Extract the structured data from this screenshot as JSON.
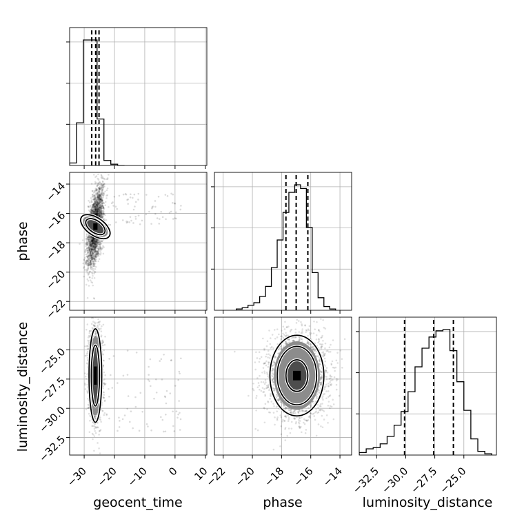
{
  "chart_data": {
    "type": "corner",
    "parameters": [
      "geocent_time",
      "phase",
      "luminosity_distance"
    ],
    "axes": {
      "geocent_time": {
        "label": "geocent_time",
        "range": [
          -34.8,
          10.5
        ],
        "ticks": [
          -30,
          -20,
          -10,
          0,
          10
        ],
        "tick_labels": [
          "−30",
          "−20",
          "−10",
          "0",
          "10"
        ]
      },
      "phase": {
        "label": "phase",
        "range": [
          -22.6,
          -13.2
        ],
        "ticks": [
          -22,
          -20,
          -18,
          -16,
          -14
        ],
        "tick_labels": [
          "−22",
          "−20",
          "−18",
          "−16",
          "−14"
        ]
      },
      "luminosity_distance": {
        "label": "luminosity_distance",
        "range": [
          -34.0,
          -22.2
        ],
        "ticks": [
          -32.5,
          -30.0,
          -27.5,
          -25.0
        ],
        "tick_labels": [
          "−32.5",
          "−30.0",
          "−27.5",
          "−25.0"
        ]
      }
    },
    "marginals": [
      {
        "parameter": "geocent_time",
        "bin_edges": [
          -34.8,
          -32.535,
          -30.27,
          -28.005,
          -25.74,
          -23.475,
          -21.21,
          -18.945,
          -16.68
        ],
        "counts": [
          2,
          34,
          100,
          100,
          37,
          4,
          1,
          0
        ],
        "quantiles": [
          -27.5,
          -26.2,
          -25.1
        ]
      },
      {
        "parameter": "phase",
        "bin_edges": [
          -21.1,
          -20.7,
          -20.3,
          -19.9,
          -19.5,
          -19.1,
          -18.7,
          -18.3,
          -17.9,
          -17.5,
          -17.1,
          -16.7,
          -16.3,
          -15.9,
          -15.5,
          -15.1,
          -14.7,
          -14.3
        ],
        "counts": [
          1,
          2,
          4,
          6,
          11,
          19,
          34,
          56,
          78,
          94,
          100,
          97,
          66,
          30,
          10,
          3,
          1
        ],
        "quantiles": [
          -17.7,
          -17.0,
          -16.2
        ]
      },
      {
        "parameter": "luminosity_distance",
        "bin_edges": [
          -34.0,
          -33.4,
          -32.8,
          -32.2,
          -31.6,
          -31.0,
          -30.4,
          -29.8,
          -29.2,
          -28.6,
          -28.0,
          -27.4,
          -26.8,
          -26.2,
          -25.6,
          -25.0,
          -24.4,
          -23.8,
          -23.2,
          -22.6
        ],
        "counts": [
          2,
          5,
          6,
          9,
          15,
          24,
          35,
          51,
          71,
          86,
          95,
          100,
          101,
          84,
          59,
          36,
          13,
          3,
          1
        ],
        "quantiles": [
          -30.1,
          -27.6,
          -25.9
        ]
      }
    ],
    "joint": [
      {
        "x": "geocent_time",
        "y": "phase",
        "center": [
          -26.3,
          -16.9
        ],
        "spread": [
          1.3,
          1.15
        ],
        "contours": [
          {
            "rx": 2.0,
            "ry": 0.75,
            "rotation_deg": -55
          },
          {
            "rx": 2.9,
            "ry": 1.15,
            "rotation_deg": -55
          }
        ]
      },
      {
        "x": "geocent_time",
        "y": "luminosity_distance",
        "center": [
          -26.3,
          -27.2
        ],
        "spread": [
          1.1,
          1.8
        ],
        "contours": [
          {
            "rx": 1.35,
            "ry": 2.6,
            "rotation_deg": 0
          },
          {
            "rx": 2.1,
            "ry": 4.0,
            "rotation_deg": 0
          }
        ]
      },
      {
        "x": "phase",
        "y": "luminosity_distance",
        "center": [
          -16.95,
          -27.2
        ],
        "spread": [
          1.0,
          1.8
        ],
        "contours": [
          {
            "rx": 0.75,
            "ry": 1.35,
            "rotation_deg": 0
          },
          {
            "rx": 1.35,
            "ry": 2.5,
            "rotation_deg": 0
          },
          {
            "rx": 1.85,
            "ry": 3.45,
            "rotation_deg": 0
          }
        ]
      }
    ]
  }
}
